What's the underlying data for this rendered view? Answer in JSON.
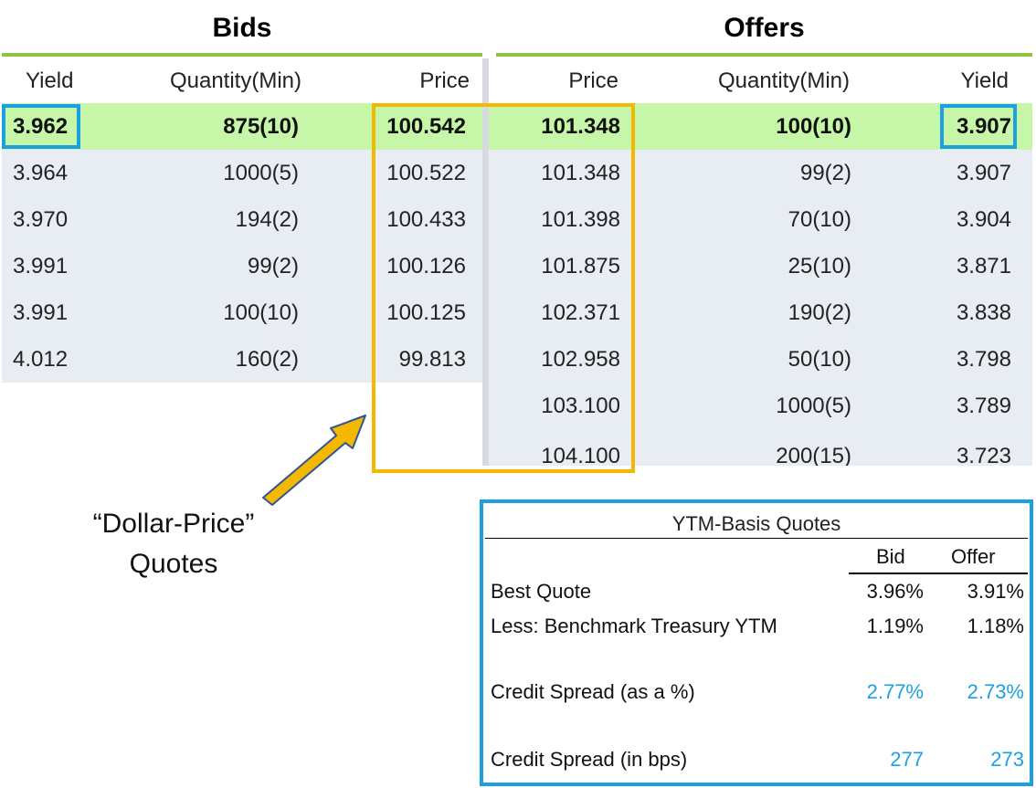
{
  "bids": {
    "title": "Bids",
    "headers": {
      "yield": "Yield",
      "quantity": "Quantity(Min)",
      "price": "Price"
    },
    "rows": [
      {
        "yield": "3.962",
        "quantity": "875(10)",
        "price": "100.542"
      },
      {
        "yield": "3.964",
        "quantity": "1000(5)",
        "price": "100.522"
      },
      {
        "yield": "3.970",
        "quantity": "194(2)",
        "price": "100.433"
      },
      {
        "yield": "3.991",
        "quantity": "99(2)",
        "price": "100.126"
      },
      {
        "yield": "3.991",
        "quantity": "100(10)",
        "price": "100.125"
      },
      {
        "yield": "4.012",
        "quantity": "160(2)",
        "price": "99.813"
      }
    ]
  },
  "offers": {
    "title": "Offers",
    "headers": {
      "price": "Price",
      "quantity": "Quantity(Min)",
      "yield": "Yield"
    },
    "rows": [
      {
        "price": "101.348",
        "quantity": "100(10)",
        "yield": "3.907"
      },
      {
        "price": "101.348",
        "quantity": "99(2)",
        "yield": "3.907"
      },
      {
        "price": "101.398",
        "quantity": "70(10)",
        "yield": "3.904"
      },
      {
        "price": "101.875",
        "quantity": "25(10)",
        "yield": "3.871"
      },
      {
        "price": "102.371",
        "quantity": "190(2)",
        "yield": "3.838"
      },
      {
        "price": "102.958",
        "quantity": "50(10)",
        "yield": "3.798"
      },
      {
        "price": "103.100",
        "quantity": "1000(5)",
        "yield": "3.789"
      },
      {
        "price": "104.100",
        "quantity": "200(15)",
        "yield": "3.723"
      }
    ]
  },
  "annotation": {
    "line1": "“Dollar-Price”",
    "line2": "Quotes"
  },
  "ytm_table": {
    "title": "YTM-Basis Quotes",
    "col_bid": "Bid",
    "col_offer": "Offer",
    "rows": [
      {
        "label": "Best Quote",
        "bid": "3.96%",
        "offer": "3.91%"
      },
      {
        "label": "Less: Benchmark Treasury YTM",
        "bid": "1.19%",
        "offer": "1.18%"
      },
      {
        "label": "Credit Spread (as a %)",
        "bid": "2.77%",
        "offer": "2.73%"
      },
      {
        "label": "Credit Spread (in bps)",
        "bid": "277",
        "offer": "273"
      }
    ]
  },
  "colors": {
    "green_rule": "#8cc63f",
    "best_row": "#c6f6a8",
    "row_bg": "#e8ecf3",
    "highlight_blue": "#1ba1e2",
    "highlight_yellow": "#f5b800"
  }
}
